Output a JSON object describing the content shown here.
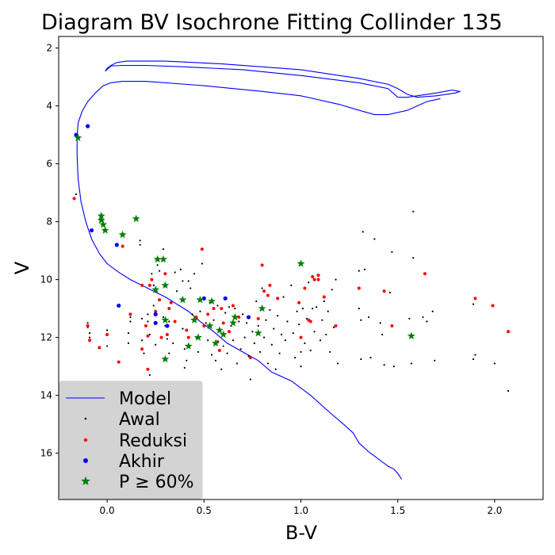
{
  "chart_data": {
    "type": "scatter",
    "title": "Diagram BV Isochrone Fitting Collinder 135",
    "xlabel": "B-V",
    "ylabel": "V",
    "xlim": [
      -0.25,
      2.25
    ],
    "ylim": [
      17.6,
      1.6
    ],
    "y_inverted": true,
    "xticks": [
      0.0,
      0.5,
      1.0,
      1.5,
      2.0
    ],
    "xtick_labels": [
      "0.0",
      "0.5",
      "1.0",
      "1.5",
      "2.0"
    ],
    "yticks": [
      2,
      4,
      6,
      8,
      10,
      12,
      14,
      16
    ],
    "ytick_labels": [
      "2",
      "4",
      "6",
      "8",
      "10",
      "12",
      "14",
      "16"
    ],
    "grid": false,
    "legend_position": "lower-left",
    "legend_bg": "#d3d3d3",
    "series": [
      {
        "name": "Model",
        "kind": "line",
        "color": "#0000ff",
        "x": [
          1.52,
          1.5,
          1.48,
          1.45,
          1.4,
          1.35,
          1.3,
          1.27,
          1.22,
          1.15,
          1.05,
          0.95,
          0.85,
          0.78,
          0.7,
          0.62,
          0.55,
          0.48,
          0.42,
          0.36,
          0.3,
          0.24,
          0.18,
          0.12,
          0.06,
          0.0,
          -0.04,
          -0.08,
          -0.11,
          -0.135,
          -0.15,
          -0.155,
          -0.155,
          -0.15,
          -0.13,
          -0.1,
          -0.06,
          -0.02,
          0.02,
          0.08,
          0.2,
          0.5,
          0.8,
          1.0,
          1.2,
          1.3,
          1.38,
          1.45,
          1.55,
          1.6,
          1.65,
          1.72
        ],
        "y": [
          16.9,
          16.7,
          16.55,
          16.45,
          16.2,
          15.95,
          15.65,
          15.3,
          15.0,
          14.6,
          14.0,
          13.5,
          13.2,
          12.8,
          12.5,
          12.2,
          11.8,
          11.45,
          11.1,
          10.85,
          10.6,
          10.4,
          10.2,
          10.0,
          9.75,
          9.45,
          9.1,
          8.6,
          8.0,
          7.3,
          6.5,
          5.7,
          5.1,
          4.6,
          4.2,
          3.85,
          3.55,
          3.3,
          3.2,
          3.15,
          3.15,
          3.3,
          3.5,
          3.65,
          3.95,
          4.15,
          4.3,
          4.3,
          4.15,
          4.0,
          3.85,
          3.75
        ]
      },
      {
        "name": "Model",
        "kind": "line",
        "color": "#0000ff",
        "x": [
          -0.01,
          0.0,
          0.02,
          0.05,
          0.1,
          0.3,
          0.6,
          1.0,
          1.3,
          1.45,
          1.5,
          1.55,
          1.6,
          1.7,
          1.8,
          1.82,
          1.78,
          1.7,
          1.6,
          1.55,
          1.5,
          1.45,
          1.3,
          1.0,
          0.7,
          0.4,
          0.2,
          0.08,
          0.02,
          -0.01
        ],
        "y": [
          2.8,
          2.7,
          2.6,
          2.5,
          2.45,
          2.45,
          2.55,
          2.75,
          3.05,
          3.25,
          3.4,
          3.6,
          3.7,
          3.65,
          3.55,
          3.5,
          3.45,
          3.55,
          3.65,
          3.7,
          3.7,
          3.4,
          3.2,
          2.95,
          2.75,
          2.65,
          2.6,
          2.6,
          2.62,
          2.8
        ]
      },
      {
        "name": "Awal",
        "kind": "scatter",
        "marker": "dot",
        "color": "#000000",
        "points": [
          [
            -0.16,
            7.05
          ],
          [
            -0.1,
            11.5
          ],
          [
            -0.1,
            11.65
          ],
          [
            -0.09,
            11.85
          ],
          [
            -0.09,
            12.0
          ],
          [
            0.0,
            11.75
          ],
          [
            0.0,
            12.3
          ],
          [
            0.06,
            12.85
          ],
          [
            0.11,
            12.2
          ],
          [
            0.11,
            11.85
          ],
          [
            0.12,
            11.45
          ],
          [
            0.12,
            11.3
          ],
          [
            0.17,
            8.65
          ],
          [
            0.17,
            8.8
          ],
          [
            0.18,
            11.35
          ],
          [
            0.18,
            12.1
          ],
          [
            0.19,
            12.55
          ],
          [
            0.21,
            11.2
          ],
          [
            0.21,
            11.45
          ],
          [
            0.22,
            11.9
          ],
          [
            0.22,
            13.3
          ],
          [
            0.23,
            9.8
          ],
          [
            0.24,
            10.2
          ],
          [
            0.24,
            10.9
          ],
          [
            0.25,
            12.25
          ],
          [
            0.26,
            9.5
          ],
          [
            0.27,
            9.7
          ],
          [
            0.29,
            8.95
          ],
          [
            0.29,
            11.3
          ],
          [
            0.3,
            11.6
          ],
          [
            0.31,
            12.05
          ],
          [
            0.32,
            11.45
          ],
          [
            0.32,
            12.55
          ],
          [
            0.34,
            12.2
          ],
          [
            0.35,
            9.75
          ],
          [
            0.36,
            10.4
          ],
          [
            0.38,
            9.65
          ],
          [
            0.39,
            10.05
          ],
          [
            0.39,
            11.7
          ],
          [
            0.4,
            12.4
          ],
          [
            0.4,
            13.05
          ],
          [
            0.41,
            12.8
          ],
          [
            0.42,
            10.05
          ],
          [
            0.43,
            10.3
          ],
          [
            0.44,
            11.2
          ],
          [
            0.45,
            9.8
          ],
          [
            0.46,
            12.0
          ],
          [
            0.47,
            12.5
          ],
          [
            0.48,
            11.1
          ],
          [
            0.49,
            9.45
          ],
          [
            0.5,
            10.7
          ],
          [
            0.51,
            11.5
          ],
          [
            0.52,
            12.1
          ],
          [
            0.53,
            10.8
          ],
          [
            0.54,
            12.6
          ],
          [
            0.55,
            11.4
          ],
          [
            0.56,
            12.8
          ],
          [
            0.57,
            10.9
          ],
          [
            0.58,
            11.8
          ],
          [
            0.59,
            13.1
          ],
          [
            0.6,
            12.3
          ],
          [
            0.61,
            11.15
          ],
          [
            0.62,
            12.55
          ],
          [
            0.63,
            10.95
          ],
          [
            0.64,
            11.6
          ],
          [
            0.65,
            12.1
          ],
          [
            0.66,
            11.0
          ],
          [
            0.67,
            12.9
          ],
          [
            0.68,
            11.45
          ],
          [
            0.69,
            12.4
          ],
          [
            0.7,
            11.2
          ],
          [
            0.71,
            12.0
          ],
          [
            0.72,
            11.5
          ],
          [
            0.73,
            12.65
          ],
          [
            0.74,
            13.45
          ],
          [
            0.75,
            11.8
          ],
          [
            0.76,
            12.2
          ],
          [
            0.77,
            10.75
          ],
          [
            0.78,
            11.6
          ],
          [
            0.79,
            12.5
          ],
          [
            0.8,
            10.3
          ],
          [
            0.81,
            12.0
          ],
          [
            0.82,
            11.4
          ],
          [
            0.83,
            12.9
          ],
          [
            0.84,
            11.05
          ],
          [
            0.85,
            12.25
          ],
          [
            0.86,
            11.7
          ],
          [
            0.87,
            13.1
          ],
          [
            0.88,
            11.25
          ],
          [
            0.89,
            12.55
          ],
          [
            0.9,
            11.9
          ],
          [
            0.91,
            10.6
          ],
          [
            0.92,
            12.1
          ],
          [
            0.93,
            11.45
          ],
          [
            0.95,
            10.2
          ],
          [
            0.96,
            11.85
          ],
          [
            0.97,
            12.7
          ],
          [
            0.98,
            11.1
          ],
          [
            0.99,
            11.55
          ],
          [
            1.0,
            12.5
          ],
          [
            1.0,
            13.0
          ],
          [
            1.01,
            11.0
          ],
          [
            1.02,
            12.2
          ],
          [
            1.03,
            11.35
          ],
          [
            1.04,
            10.1
          ],
          [
            1.05,
            12.45
          ],
          [
            1.06,
            11.0
          ],
          [
            1.07,
            11.8
          ],
          [
            1.08,
            10.95
          ],
          [
            1.1,
            12.1
          ],
          [
            1.11,
            11.4
          ],
          [
            1.12,
            10.75
          ],
          [
            1.13,
            11.9
          ],
          [
            1.14,
            11.1
          ],
          [
            1.15,
            12.5
          ],
          [
            1.16,
            10.35
          ],
          [
            1.17,
            11.65
          ],
          [
            1.18,
            10.0
          ],
          [
            1.19,
            12.9
          ],
          [
            1.3,
            9.7
          ],
          [
            1.3,
            11.0
          ],
          [
            1.31,
            11.4
          ],
          [
            1.31,
            12.75
          ],
          [
            1.32,
            8.35
          ],
          [
            1.33,
            9.65
          ],
          [
            1.35,
            11.3
          ],
          [
            1.36,
            12.7
          ],
          [
            1.38,
            8.6
          ],
          [
            1.41,
            11.5
          ],
          [
            1.42,
            11.9
          ],
          [
            1.43,
            12.95
          ],
          [
            1.46,
            10.45
          ],
          [
            1.47,
            9.05
          ],
          [
            1.48,
            13.0
          ],
          [
            1.56,
            11.35
          ],
          [
            1.57,
            12.9
          ],
          [
            1.58,
            7.65
          ],
          [
            1.58,
            9.25
          ],
          [
            1.63,
            11.3
          ],
          [
            1.65,
            11.45
          ],
          [
            1.68,
            11.1
          ],
          [
            1.69,
            12.8
          ],
          [
            1.89,
            10.85
          ],
          [
            1.89,
            12.75
          ],
          [
            1.9,
            12.6
          ],
          [
            2.0,
            12.9
          ],
          [
            2.07,
            13.85
          ]
        ]
      },
      {
        "name": "Reduksi",
        "kind": "scatter",
        "marker": "dot",
        "color": "#ff0000",
        "points": [
          [
            -0.17,
            7.2
          ],
          [
            -0.1,
            11.6
          ],
          [
            -0.09,
            12.1
          ],
          [
            -0.04,
            12.35
          ],
          [
            0.0,
            11.9
          ],
          [
            0.06,
            12.85
          ],
          [
            0.08,
            8.85
          ],
          [
            0.12,
            11.2
          ],
          [
            0.18,
            10.2
          ],
          [
            0.18,
            12.4
          ],
          [
            0.2,
            11.6
          ],
          [
            0.21,
            11.95
          ],
          [
            0.21,
            13.1
          ],
          [
            0.22,
            10.2
          ],
          [
            0.23,
            10.0
          ],
          [
            0.25,
            11.1
          ],
          [
            0.27,
            10.7
          ],
          [
            0.28,
            12.0
          ],
          [
            0.3,
            9.8
          ],
          [
            0.31,
            11.9
          ],
          [
            0.32,
            11.0
          ],
          [
            0.33,
            10.8
          ],
          [
            0.35,
            11.45
          ],
          [
            0.41,
            11.75
          ],
          [
            0.42,
            12.0
          ],
          [
            0.46,
            11.3
          ],
          [
            0.49,
            8.95
          ],
          [
            0.5,
            11.6
          ],
          [
            0.52,
            11.2
          ],
          [
            0.55,
            11.0
          ],
          [
            0.57,
            12.15
          ],
          [
            0.58,
            12.45
          ],
          [
            0.59,
            11.0
          ],
          [
            0.6,
            11.5
          ],
          [
            0.63,
            11.8
          ],
          [
            0.65,
            10.9
          ],
          [
            0.68,
            11.3
          ],
          [
            0.74,
            12.7
          ],
          [
            0.78,
            11.35
          ],
          [
            0.8,
            9.5
          ],
          [
            0.81,
            10.4
          ],
          [
            0.83,
            10.55
          ],
          [
            0.84,
            10.2
          ],
          [
            0.88,
            10.65
          ],
          [
            0.99,
            10.8
          ],
          [
            1.0,
            12.0
          ],
          [
            1.02,
            10.3
          ],
          [
            1.04,
            11.4
          ],
          [
            1.05,
            11.45
          ],
          [
            1.06,
            9.9
          ],
          [
            1.07,
            10.0
          ],
          [
            1.09,
            9.85
          ],
          [
            1.09,
            10.0
          ],
          [
            1.12,
            10.6
          ],
          [
            1.18,
            11.6
          ],
          [
            1.3,
            10.3
          ],
          [
            1.43,
            10.4
          ],
          [
            1.47,
            11.6
          ],
          [
            1.64,
            9.8
          ],
          [
            1.9,
            10.65
          ],
          [
            1.99,
            10.9
          ],
          [
            2.07,
            11.8
          ]
        ]
      },
      {
        "name": "Akhir",
        "kind": "scatter",
        "marker": "dot",
        "color": "#0000ff",
        "points": [
          [
            -0.16,
            5.0
          ],
          [
            -0.1,
            4.7
          ],
          [
            -0.08,
            8.3
          ],
          [
            0.05,
            8.8
          ],
          [
            0.06,
            10.9
          ],
          [
            0.25,
            11.2
          ],
          [
            0.25,
            11.5
          ],
          [
            0.31,
            11.6
          ],
          [
            0.5,
            10.65
          ],
          [
            0.61,
            10.65
          ],
          [
            0.73,
            11.3
          ]
        ]
      },
      {
        "name": "P ≥ 60%",
        "kind": "scatter",
        "marker": "star",
        "color": "#008000",
        "points": [
          [
            -0.15,
            5.1
          ],
          [
            -0.03,
            7.8
          ],
          [
            -0.03,
            7.95
          ],
          [
            -0.02,
            8.1
          ],
          [
            -0.01,
            8.3
          ],
          [
            0.08,
            8.45
          ],
          [
            0.15,
            7.9
          ],
          [
            0.26,
            9.3
          ],
          [
            0.29,
            9.3
          ],
          [
            0.25,
            10.35
          ],
          [
            0.3,
            10.2
          ],
          [
            0.3,
            11.4
          ],
          [
            0.3,
            12.75
          ],
          [
            0.39,
            10.7
          ],
          [
            0.42,
            12.3
          ],
          [
            0.45,
            11.4
          ],
          [
            0.47,
            12.0
          ],
          [
            0.48,
            10.7
          ],
          [
            0.53,
            11.6
          ],
          [
            0.54,
            10.75
          ],
          [
            0.56,
            12.2
          ],
          [
            0.58,
            11.75
          ],
          [
            0.6,
            11.9
          ],
          [
            0.65,
            11.5
          ],
          [
            0.66,
            11.3
          ],
          [
            0.78,
            11.85
          ],
          [
            0.8,
            11.0
          ],
          [
            1.0,
            9.45
          ],
          [
            1.57,
            11.95
          ]
        ]
      }
    ]
  },
  "legend": {
    "model_label": "Model",
    "awal_label": "Awal",
    "reduksi_label": "Reduksi",
    "akhir_label": "Akhir",
    "p60_label": "P ≥ 60%"
  }
}
